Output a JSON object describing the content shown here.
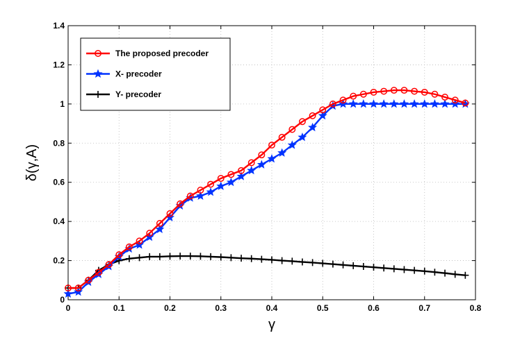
{
  "chart_data": {
    "type": "line",
    "title": "",
    "xlabel": "γ",
    "ylabel": "δ(γ,A)",
    "xlim": [
      0,
      0.8
    ],
    "ylim": [
      0,
      1.4
    ],
    "xticks": [
      0,
      0.1,
      0.2,
      0.3,
      0.4,
      0.5,
      0.6,
      0.7,
      0.8
    ],
    "yticks": [
      0,
      0.2,
      0.4,
      0.6,
      0.8,
      1,
      1.2,
      1.4
    ],
    "xtick_labels": [
      "0",
      "0.1",
      "0.2",
      "0.3",
      "0.4",
      "0.5",
      "0.6",
      "0.7",
      "0.8"
    ],
    "ytick_labels": [
      "0",
      "0.2",
      "0.4",
      "0.6",
      "0.8",
      "1",
      "1.2",
      "1.4"
    ],
    "grid": true,
    "legend_position": "top-left",
    "x": [
      0,
      0.02,
      0.04,
      0.06,
      0.08,
      0.1,
      0.12,
      0.14,
      0.16,
      0.18,
      0.2,
      0.22,
      0.24,
      0.26,
      0.28,
      0.3,
      0.32,
      0.34,
      0.36,
      0.38,
      0.4,
      0.42,
      0.44,
      0.46,
      0.48,
      0.5,
      0.52,
      0.54,
      0.56,
      0.58,
      0.6,
      0.62,
      0.64,
      0.66,
      0.68,
      0.7,
      0.72,
      0.74,
      0.76,
      0.78
    ],
    "series": [
      {
        "name": "The proposed precoder",
        "color": "#ff0000",
        "marker": "circle",
        "values": [
          0.06,
          0.06,
          0.1,
          0.14,
          0.18,
          0.23,
          0.27,
          0.3,
          0.34,
          0.39,
          0.44,
          0.49,
          0.53,
          0.56,
          0.59,
          0.62,
          0.64,
          0.66,
          0.7,
          0.74,
          0.79,
          0.83,
          0.87,
          0.91,
          0.94,
          0.97,
          1.0,
          1.02,
          1.04,
          1.05,
          1.06,
          1.065,
          1.07,
          1.07,
          1.065,
          1.06,
          1.05,
          1.035,
          1.02,
          1.005
        ]
      },
      {
        "name": "X- precoder",
        "color": "#0033ff",
        "marker": "star",
        "values": [
          0.03,
          0.04,
          0.09,
          0.13,
          0.17,
          0.22,
          0.26,
          0.28,
          0.32,
          0.36,
          0.42,
          0.48,
          0.52,
          0.53,
          0.55,
          0.58,
          0.6,
          0.63,
          0.66,
          0.69,
          0.72,
          0.75,
          0.79,
          0.83,
          0.88,
          0.94,
          0.99,
          1.0,
          1.0,
          1.0,
          1.0,
          1.0,
          1.0,
          1.0,
          1.0,
          1.0,
          1.0,
          1.0,
          1.0,
          1.0
        ]
      },
      {
        "name": "Y- precoder",
        "color": "#000000",
        "marker": "plus",
        "values": [
          0.06,
          0.06,
          0.1,
          0.15,
          0.18,
          0.2,
          0.21,
          0.215,
          0.22,
          0.22,
          0.222,
          0.223,
          0.223,
          0.222,
          0.22,
          0.218,
          0.215,
          0.212,
          0.21,
          0.207,
          0.204,
          0.2,
          0.197,
          0.193,
          0.19,
          0.186,
          0.182,
          0.178,
          0.174,
          0.17,
          0.166,
          0.162,
          0.158,
          0.154,
          0.15,
          0.146,
          0.141,
          0.136,
          0.13,
          0.125
        ]
      }
    ]
  }
}
